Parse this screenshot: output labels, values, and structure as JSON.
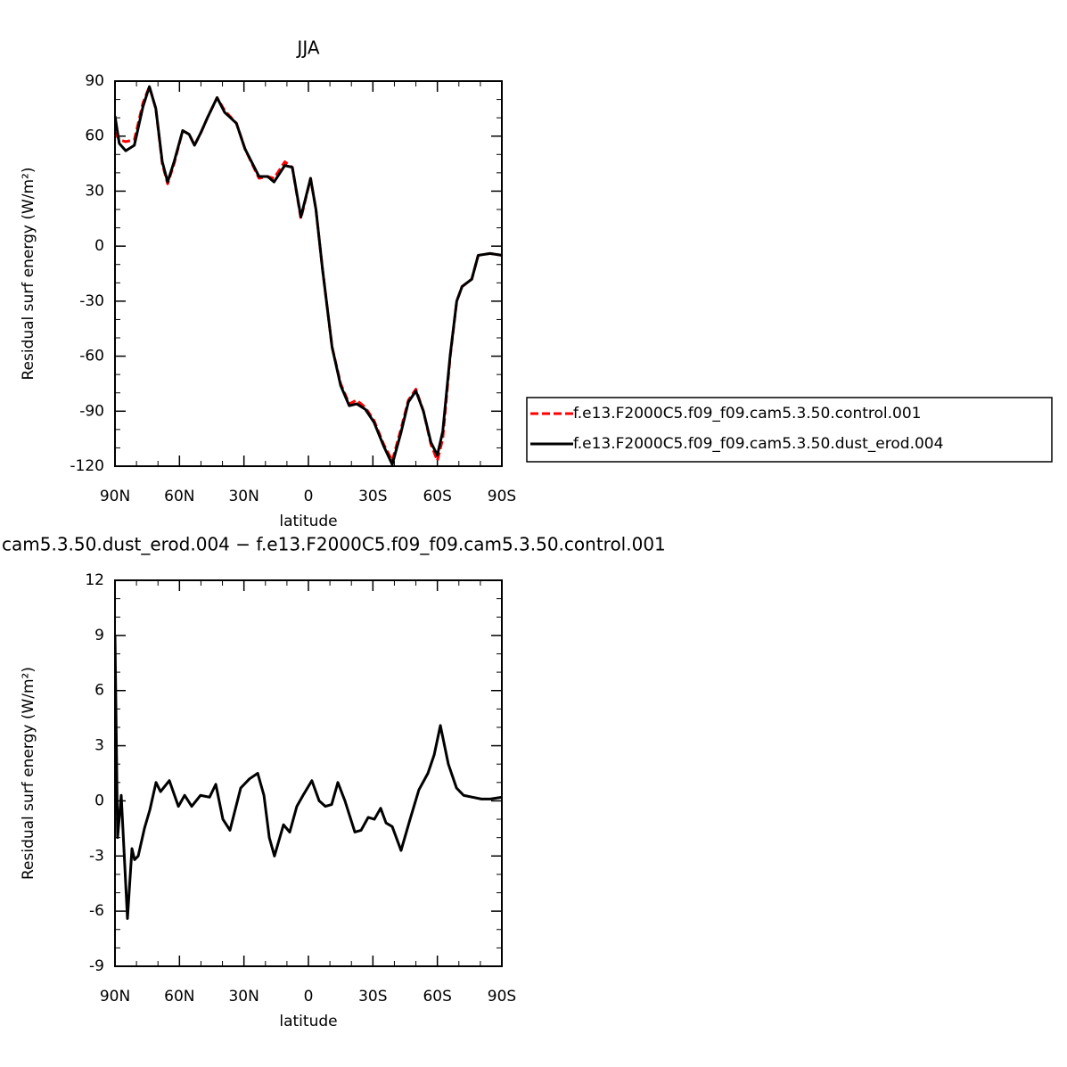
{
  "chart_data": [
    {
      "type": "line",
      "title": "JJA",
      "xlabel": "latitude",
      "ylabel": "Residual surf energy (W/m²)",
      "x": [
        90,
        88,
        85,
        81,
        77,
        74,
        71,
        68,
        65.5,
        62.5,
        58.5,
        55.5,
        53,
        50,
        47,
        42.5,
        39,
        33.5,
        29.5,
        23,
        19,
        16,
        11,
        7.5,
        3.5,
        -1,
        -3.5,
        -6.5,
        -11,
        -15,
        -19,
        -22.5,
        -26.5,
        -30.5,
        -35,
        -39,
        -43,
        -46.5,
        -50,
        -53.5,
        -57,
        -60,
        -62.5,
        -66,
        -69,
        -71.5,
        -76,
        -79,
        -84.5,
        -90
      ],
      "series": [
        {
          "name": "f.e13.F2000C5.f09_f09.cam5.3.50.control.001",
          "color": "#ff0000",
          "dash": true,
          "values": [
            62,
            58,
            57,
            58,
            78,
            87,
            75,
            45,
            34,
            45,
            63,
            61,
            55,
            62,
            70,
            81,
            74,
            67,
            53,
            37,
            38,
            37,
            46,
            43,
            15,
            37,
            20,
            -12,
            -55,
            -75,
            -86,
            -84,
            -88,
            -95,
            -108,
            -117,
            -100,
            -84,
            -78,
            -90,
            -108,
            -117,
            -105,
            -60,
            -30,
            -22,
            -18,
            -5,
            -4,
            -5
          ]
        },
        {
          "name": "f.e13.F2000C5.f09_f09.cam5.3.50.dust_erod.004",
          "color": "#000000",
          "dash": false,
          "values": [
            71,
            56,
            52,
            55,
            76,
            87,
            75,
            46,
            35,
            46,
            63,
            61,
            55,
            62,
            70,
            81,
            73,
            67,
            53,
            38,
            38,
            35,
            44,
            43,
            16,
            37,
            20,
            -12,
            -55,
            -76,
            -87,
            -86,
            -89,
            -96,
            -109,
            -119,
            -102,
            -85,
            -79,
            -90,
            -107,
            -114,
            -101,
            -59,
            -30,
            -22,
            -18,
            -5,
            -4,
            -5
          ]
        }
      ],
      "legend": "right",
      "xlim": [
        90,
        -90
      ],
      "xticks": [
        {
          "value": 90,
          "label": "90N"
        },
        {
          "value": 60,
          "label": "60N"
        },
        {
          "value": 30,
          "label": "30N"
        },
        0,
        {
          "value": -30,
          "label": "30S"
        },
        {
          "value": -60,
          "label": "60S"
        },
        {
          "value": -90,
          "label": "90S"
        }
      ],
      "ylim": [
        -120,
        90
      ],
      "yticks": [
        -120,
        -90,
        -60,
        -30,
        0,
        30,
        60,
        90
      ]
    },
    {
      "type": "line",
      "title": "cam5.3.50.dust_erod.004 − f.e13.F2000C5.f09_f09.cam5.3.50.control.001",
      "xlabel": "latitude",
      "ylabel": "Residual surf energy (W/m²)",
      "x": [
        90,
        88.8,
        87.1,
        84.2,
        82.1,
        80.9,
        79.2,
        76.3,
        73.8,
        70.9,
        68.8,
        64.7,
        60.5,
        57.6,
        54.3,
        50.2,
        46,
        43.1,
        39.8,
        36.5,
        31.5,
        27.4,
        23.6,
        20.7,
        18.2,
        15.8,
        11.6,
        8.7,
        5.4,
        2.5,
        -1.6,
        -5,
        -7.9,
        -10.8,
        -13.7,
        -17,
        -21.6,
        -24.5,
        -27.8,
        -30.7,
        -33.6,
        -36.1,
        -39,
        -43.1,
        -47.3,
        -51.4,
        -55.6,
        -58.5,
        -61.4,
        -65.1,
        -68.9,
        -72.2,
        -76.3,
        -80.5,
        -84.6,
        -90
      ],
      "series": [
        {
          "color": "#000000",
          "values": [
            9.0,
            -2.0,
            0.3,
            -6.4,
            -2.6,
            -3.2,
            -3.0,
            -1.5,
            -0.5,
            1.0,
            0.5,
            1.1,
            -0.3,
            0.3,
            -0.3,
            0.3,
            0.2,
            0.9,
            -1.0,
            -1.6,
            0.7,
            1.2,
            1.5,
            0.3,
            -2.0,
            -3.0,
            -1.3,
            -1.7,
            -0.3,
            0.3,
            1.1,
            0.0,
            -0.3,
            -0.2,
            1.0,
            0.0,
            -1.7,
            -1.6,
            -0.9,
            -1.0,
            -0.4,
            -1.2,
            -1.4,
            -2.7,
            -1.0,
            0.6,
            1.5,
            2.5,
            4.1,
            2.0,
            0.7,
            0.3,
            0.2,
            0.1,
            0.1,
            0.2
          ]
        }
      ],
      "xlim": [
        90,
        -90
      ],
      "xticks": [
        {
          "value": 90,
          "label": "90N"
        },
        {
          "value": 60,
          "label": "60N"
        },
        {
          "value": 30,
          "label": "30N"
        },
        0,
        {
          "value": -30,
          "label": "30S"
        },
        {
          "value": -60,
          "label": "60S"
        },
        {
          "value": -90,
          "label": "90S"
        }
      ],
      "ylim": [
        -9,
        12
      ],
      "yticks": [
        -9,
        -6,
        -3,
        0,
        3,
        6,
        9,
        12
      ]
    }
  ]
}
